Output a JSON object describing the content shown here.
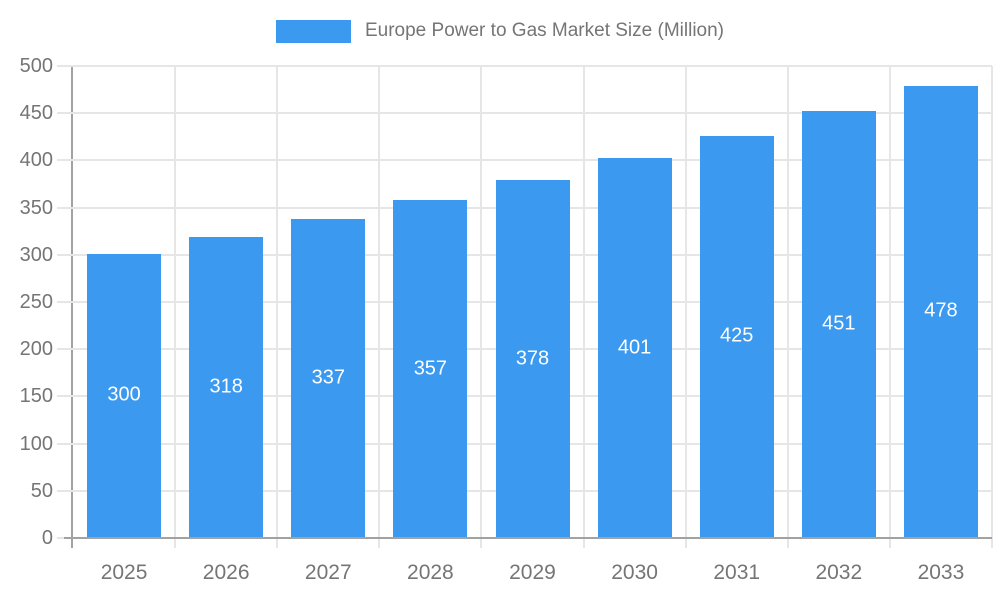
{
  "chart_data": {
    "type": "bar",
    "title": "Europe Power to Gas Market Size (Million)",
    "categories": [
      "2025",
      "2026",
      "2027",
      "2028",
      "2029",
      "2030",
      "2031",
      "2032",
      "2033"
    ],
    "series": [
      {
        "name": "Europe Power to Gas Market Size (Million)",
        "values": [
          300,
          318,
          337,
          357,
          378,
          401,
          425,
          451,
          478
        ]
      }
    ],
    "value_labels": [
      "300",
      "318",
      "337",
      "357",
      "378",
      "401",
      "425",
      "451",
      "478"
    ],
    "xlabel": "",
    "ylabel": "",
    "ylim": [
      0,
      500
    ],
    "yticks": [
      0,
      50,
      100,
      150,
      200,
      250,
      300,
      350,
      400,
      450,
      500
    ],
    "grid": true,
    "legend_position": "top",
    "colors": {
      "bar": "#3b99f0",
      "grid": "#e6e6e6",
      "axis": "#a2a2a2",
      "text": "#757575",
      "value_label": "#ffffff",
      "background": "#ffffff"
    }
  }
}
